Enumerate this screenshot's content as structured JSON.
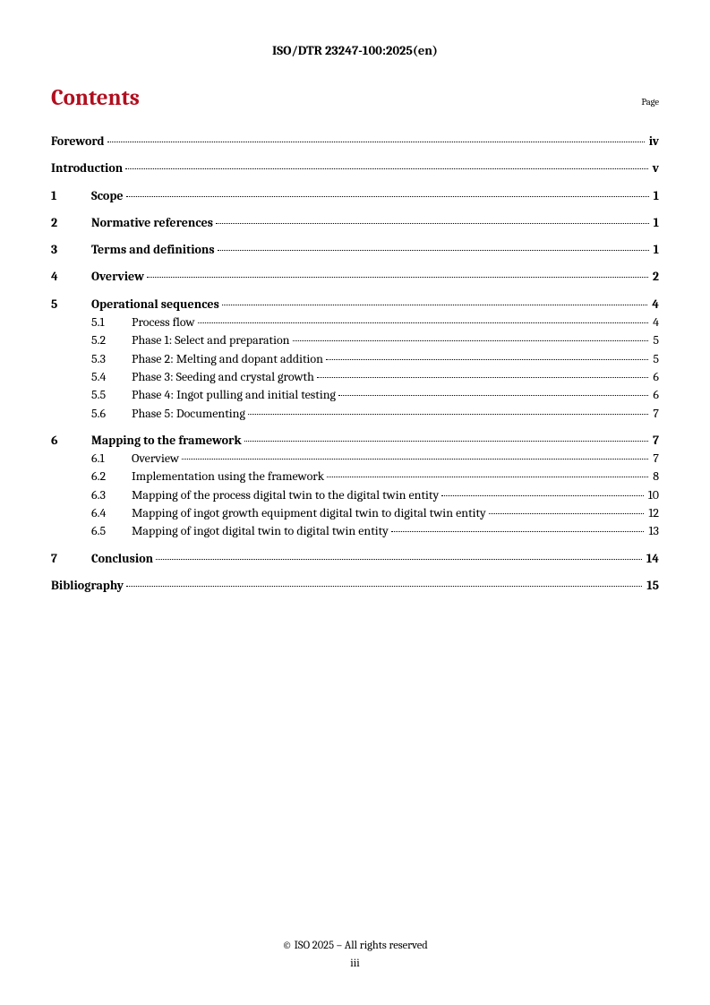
{
  "header": {
    "doc_id": "ISO/DTR 23247-100:2025(en)"
  },
  "contents": {
    "title": "Contents",
    "page_label": "Page"
  },
  "toc": [
    {
      "type": "plain",
      "title": "Foreword",
      "page": "iv",
      "bold": true
    },
    {
      "type": "plain",
      "title": "Introduction",
      "page": "v",
      "bold": true
    },
    {
      "type": "numbered",
      "num": "1",
      "title": "Scope",
      "page": "1",
      "bold": true,
      "subs": []
    },
    {
      "type": "numbered",
      "num": "2",
      "title": "Normative references",
      "page": "1",
      "bold": true,
      "subs": []
    },
    {
      "type": "numbered",
      "num": "3",
      "title": "Terms and definitions",
      "page": "1",
      "bold": true,
      "subs": []
    },
    {
      "type": "numbered",
      "num": "4",
      "title": "Overview",
      "page": "2",
      "bold": true,
      "subs": []
    },
    {
      "type": "numbered",
      "num": "5",
      "title": "Operational sequences",
      "page": "4",
      "bold": true,
      "subs": [
        {
          "num": "5.1",
          "title": "Process flow",
          "page": "4"
        },
        {
          "num": "5.2",
          "title": "Phase 1: Select and preparation",
          "page": "5"
        },
        {
          "num": "5.3",
          "title": "Phase 2: Melting and dopant addition",
          "page": "5"
        },
        {
          "num": "5.4",
          "title": "Phase 3: Seeding and crystal growth",
          "page": "6"
        },
        {
          "num": "5.5",
          "title": "Phase 4: Ingot pulling and initial testing",
          "page": "6"
        },
        {
          "num": "5.6",
          "title": "Phase 5: Documenting",
          "page": "7"
        }
      ]
    },
    {
      "type": "numbered",
      "num": "6",
      "title": "Mapping to the framework",
      "page": "7",
      "bold": true,
      "subs": [
        {
          "num": "6.1",
          "title": "Overview",
          "page": "7"
        },
        {
          "num": "6.2",
          "title": "Implementation using the framework",
          "page": "8"
        },
        {
          "num": "6.3",
          "title": "Mapping of the process digital twin to the digital twin entity",
          "page": "10"
        },
        {
          "num": "6.4",
          "title": "Mapping of ingot growth equipment digital twin to digital twin entity",
          "page": "12"
        },
        {
          "num": "6.5",
          "title": "Mapping of ingot digital twin to digital twin entity",
          "page": "13"
        }
      ]
    },
    {
      "type": "numbered",
      "num": "7",
      "title": "Conclusion",
      "page": "14",
      "bold": true,
      "subs": []
    },
    {
      "type": "plain",
      "title": "Bibliography",
      "page": "15",
      "bold": true
    }
  ],
  "footer": {
    "copyright": "© ISO 2025 – All rights reserved",
    "page_num": "iii"
  }
}
